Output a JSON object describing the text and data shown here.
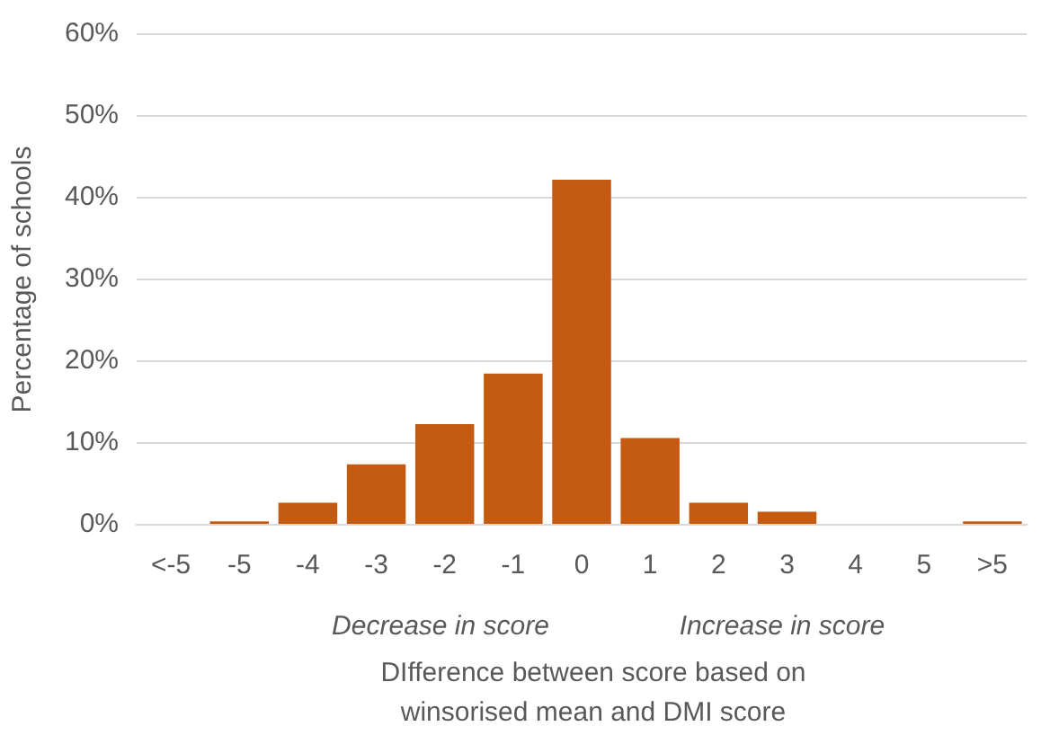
{
  "chart_data": {
    "type": "bar",
    "categories": [
      "<-5",
      "-5",
      "-4",
      "-3",
      "-2",
      "-1",
      "0",
      "1",
      "2",
      "3",
      "4",
      "5",
      ">5"
    ],
    "values": [
      0,
      0.4,
      2.7,
      7.4,
      12.3,
      18.5,
      42.2,
      10.6,
      2.7,
      1.6,
      0,
      0,
      0.4
    ],
    "color": "#c55a11",
    "ylim": [
      0,
      60
    ],
    "yticks": [
      {
        "value": 0,
        "label": "0%"
      },
      {
        "value": 10,
        "label": "10%"
      },
      {
        "value": 20,
        "label": "20%"
      },
      {
        "value": 30,
        "label": "30%"
      },
      {
        "value": 40,
        "label": "40%"
      },
      {
        "value": 50,
        "label": "50%"
      },
      {
        "value": 60,
        "label": "60%"
      }
    ],
    "ylabel": "Percentage of schools",
    "xlabel": "DIfference between score based on winsorised mean and DMI score",
    "annotations": [
      "Decrease in score",
      "Increase in score"
    ],
    "grid": "y",
    "legend": false
  }
}
